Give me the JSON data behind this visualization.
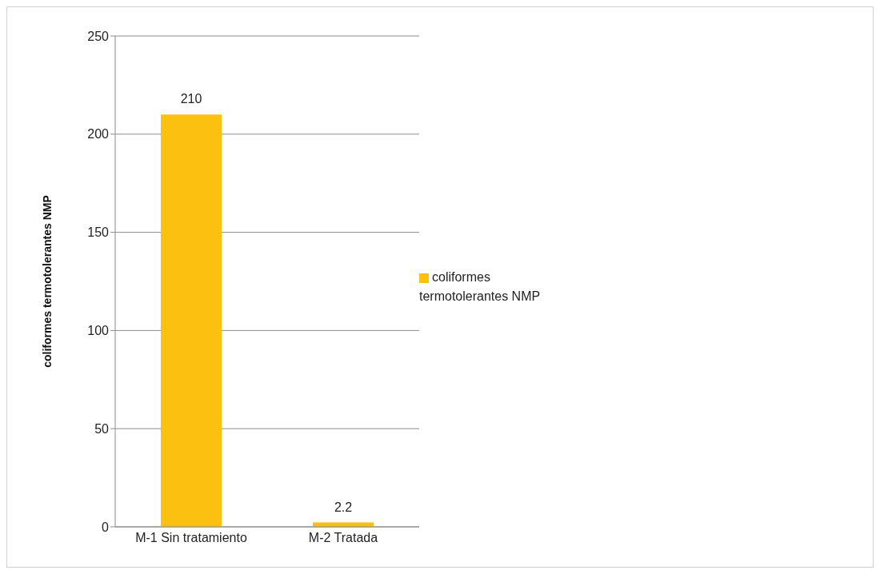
{
  "chart_data": {
    "type": "bar",
    "ylabel": "coliformes termotolerantes  NMP",
    "categories": [
      "M-1 Sin tratamiento",
      "M-2  Tratada"
    ],
    "series": [
      {
        "name": "coliformes termotolerantes NMP",
        "color": "#fbc010",
        "values": [
          210,
          2.2
        ]
      }
    ],
    "ylim": [
      0,
      250
    ],
    "yticks": [
      0,
      50,
      100,
      150,
      200,
      250
    ],
    "grid": "y",
    "legend": "right",
    "data_labels": true
  }
}
